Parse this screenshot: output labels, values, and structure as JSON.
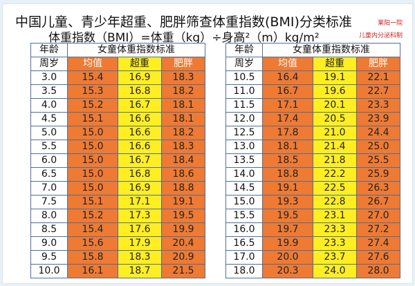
{
  "title": {
    "line1": "中国儿童、青少年超重、肥胖筛查体重指数(BMI)分类标准",
    "line2": "体重指数（BMI）=体重（kg）÷身高²（m）kg/m²"
  },
  "stamp": {
    "line1": "莱阳一院",
    "line2": "儿童内分泌科制"
  },
  "table_headers": {
    "age": "年龄",
    "age_unit": "周岁",
    "group": "女童体重指数标准",
    "avg": "均值",
    "overweight": "超重",
    "obese": "肥胖"
  },
  "left_rows": [
    {
      "age": "3.0",
      "avg": "15.4",
      "overweight": "16.9",
      "obese": "18.3"
    },
    {
      "age": "3.5",
      "avg": "15.3",
      "overweight": "16.8",
      "obese": "18.2"
    },
    {
      "age": "4.0",
      "avg": "15.2",
      "overweight": "16.7",
      "obese": "18.1"
    },
    {
      "age": "4.5",
      "avg": "15.1",
      "overweight": "16.6",
      "obese": "18.1"
    },
    {
      "age": "5.0",
      "avg": "15.0",
      "overweight": "16.6",
      "obese": "18.2"
    },
    {
      "age": "5.5",
      "avg": "15.0",
      "overweight": "16.6",
      "obese": "18.3"
    },
    {
      "age": "6.0",
      "avg": "15.0",
      "overweight": "16.7",
      "obese": "18.4"
    },
    {
      "age": "6.5",
      "avg": "15.0",
      "overweight": "16.8",
      "obese": "18.6"
    },
    {
      "age": "7.0",
      "avg": "15.0",
      "overweight": "16.9",
      "obese": "18.8"
    },
    {
      "age": "7.5",
      "avg": "15.1",
      "overweight": "17.1",
      "obese": "19.1"
    },
    {
      "age": "8.0",
      "avg": "15.2",
      "overweight": "17.3",
      "obese": "19.5"
    },
    {
      "age": "8.5",
      "avg": "15.4",
      "overweight": "17.6",
      "obese": "19.9"
    },
    {
      "age": "9.0",
      "avg": "15.6",
      "overweight": "17.9",
      "obese": "20.4"
    },
    {
      "age": "9.5",
      "avg": "15.8",
      "overweight": "18.3",
      "obese": "20.9"
    },
    {
      "age": "10.0",
      "avg": "16.1",
      "overweight": "18.7",
      "obese": "21.5"
    }
  ],
  "right_rows": [
    {
      "age": "10.5",
      "avg": "16.4",
      "overweight": "19.1",
      "obese": "22.1"
    },
    {
      "age": "11.0",
      "avg": "16.7",
      "overweight": "19.6",
      "obese": "22.7"
    },
    {
      "age": "11.5",
      "avg": "17.1",
      "overweight": "20.1",
      "obese": "23.3"
    },
    {
      "age": "12.0",
      "avg": "17.4",
      "overweight": "20.5",
      "obese": "23.9"
    },
    {
      "age": "12.5",
      "avg": "17.8",
      "overweight": "21.0",
      "obese": "24.4"
    },
    {
      "age": "13.0",
      "avg": "18.1",
      "overweight": "21.4",
      "obese": "25.0"
    },
    {
      "age": "13.5",
      "avg": "18.5",
      "overweight": "21.8",
      "obese": "25.5"
    },
    {
      "age": "14.0",
      "avg": "18.8",
      "overweight": "22.2",
      "obese": "25.9"
    },
    {
      "age": "14.5",
      "avg": "19.1",
      "overweight": "22.5",
      "obese": "26.3"
    },
    {
      "age": "15.0",
      "avg": "19.3",
      "overweight": "22.8",
      "obese": "26.7"
    },
    {
      "age": "15.5",
      "avg": "19.5",
      "overweight": "23.1",
      "obese": "27.0"
    },
    {
      "age": "16.0",
      "avg": "19.7",
      "overweight": "23.3",
      "obese": "27.2"
    },
    {
      "age": "16.5",
      "avg": "19.9",
      "overweight": "23.3",
      "obese": "27.4"
    },
    {
      "age": "17.0",
      "avg": "20.0",
      "overweight": "23.7",
      "obese": "27.6"
    },
    {
      "age": "18.0",
      "avg": "20.3",
      "overweight": "24.0",
      "obese": "28.0"
    }
  ],
  "colors": {
    "avg_fill": "#ee7a33",
    "overweight_fill": "#ffee22",
    "obese_fill": "#ee7a33",
    "grid_line": "#4d6f9a"
  }
}
